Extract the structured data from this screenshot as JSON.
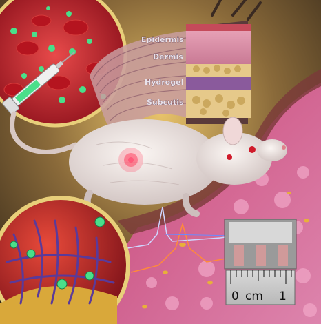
{
  "skin_layers": {
    "epidermis": "Epidermis",
    "dermis": "Dermis",
    "hydrogel": "Hydrogel",
    "subcutis": "Subcutis"
  },
  "ruler": {
    "zero": "0",
    "unit": "cm",
    "one": "1"
  },
  "colors": {
    "background": "#2a1f14",
    "blood_red": "#c21f2e",
    "tissue_pink": "#d85a8e",
    "hydrogel_purple": "#8a5a9c",
    "fat_yellow": "#d9b77a",
    "frame_gold": "#e8cf7a",
    "signal_blue": "#cfd6ff",
    "signal_orange": "#ff8a3a"
  },
  "icons": [
    "syringe-icon",
    "red-blood-cell-icon",
    "nanoparticle-icon",
    "sensor-implant-icon",
    "ruler-icon",
    "mouse-illustration"
  ]
}
